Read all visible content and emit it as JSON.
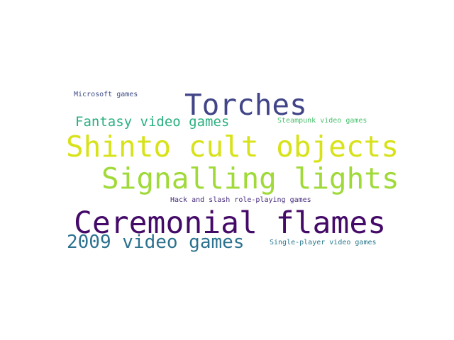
{
  "words": [
    {
      "key": "microsoft",
      "text": "Microsoft games",
      "color": "#3d4c87"
    },
    {
      "key": "torches",
      "text": "Torches",
      "color": "#414487"
    },
    {
      "key": "fantasy",
      "text": "Fantasy video games",
      "color": "#2ab07f"
    },
    {
      "key": "steampunk",
      "text": "Steampunk video games",
      "color": "#4ac16d"
    },
    {
      "key": "shinto",
      "text": "Shinto cult objects",
      "color": "#d8e219"
    },
    {
      "key": "signalling",
      "text": "Signalling lights",
      "color": "#a0da39"
    },
    {
      "key": "hack",
      "text": "Hack and slash role-playing games",
      "color": "#472d7b"
    },
    {
      "key": "ceremonial",
      "text": "Ceremonial flames",
      "color": "#440a68"
    },
    {
      "key": "videogames2009",
      "text": "2009 video games",
      "color": "#2c728e"
    },
    {
      "key": "singleplayer",
      "text": "Single-player video games",
      "color": "#2a788e"
    }
  ]
}
